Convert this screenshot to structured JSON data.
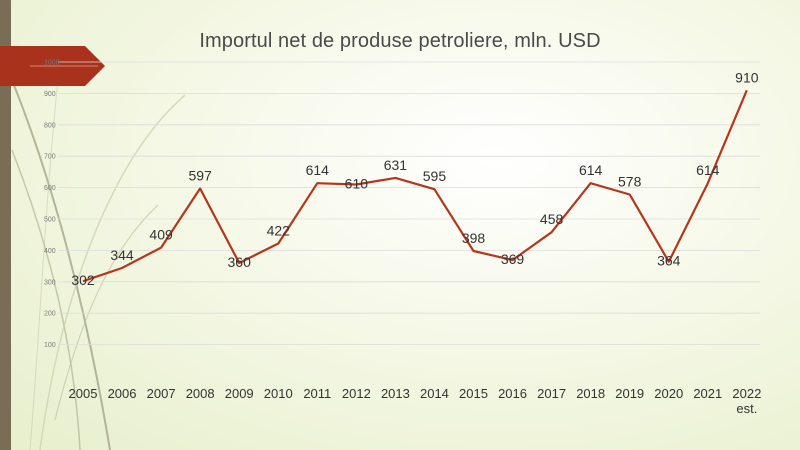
{
  "chart_data": {
    "type": "line",
    "title": "Importul net de produse petroliere, mln. USD",
    "categories": [
      "2005",
      "2006",
      "2007",
      "2008",
      "2009",
      "2010",
      "2011",
      "2012",
      "2013",
      "2014",
      "2015",
      "2016",
      "2017",
      "2018",
      "2019",
      "2020",
      "2021",
      "2022 est."
    ],
    "series": [
      {
        "values": [
          302,
          344,
          409,
          597,
          360,
          422,
          614,
          610,
          631,
          595,
          398,
          369,
          458,
          614,
          578,
          364,
          614,
          910
        ]
      }
    ],
    "y_ticks": [
      100,
      200,
      300,
      400,
      500,
      600,
      700,
      800,
      900,
      1000
    ],
    "ylim": [
      0,
      1000
    ],
    "grid": true,
    "legend": "none",
    "xlabel": "",
    "ylabel": "",
    "colors": {
      "line": "#b5371b",
      "grid": "#dcdcdc",
      "accent_tab": "#a8321c"
    }
  }
}
